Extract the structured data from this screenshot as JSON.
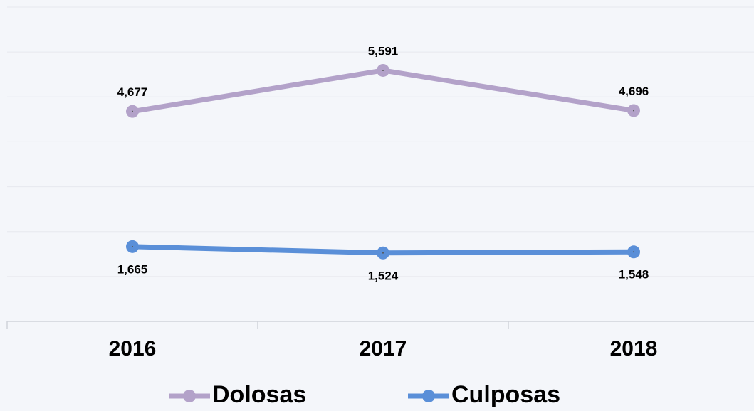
{
  "chart_data": {
    "type": "line",
    "categories": [
      "2016",
      "2017",
      "2018"
    ],
    "series": [
      {
        "name": "Dolosas",
        "color": "#b3a2c9",
        "values": [
          4677,
          5591,
          4696
        ],
        "value_labels": [
          "4,677",
          "5,591",
          "4,696"
        ]
      },
      {
        "name": "Culposas",
        "color": "#5a8fd8",
        "values": [
          1665,
          1524,
          1548
        ],
        "value_labels": [
          "1,665",
          "1,524",
          "1,548"
        ]
      }
    ],
    "ylim": [
      0,
      7000
    ],
    "yticks": [
      0,
      1000,
      2000,
      3000,
      4000,
      5000,
      6000,
      7000
    ],
    "grid": true
  }
}
